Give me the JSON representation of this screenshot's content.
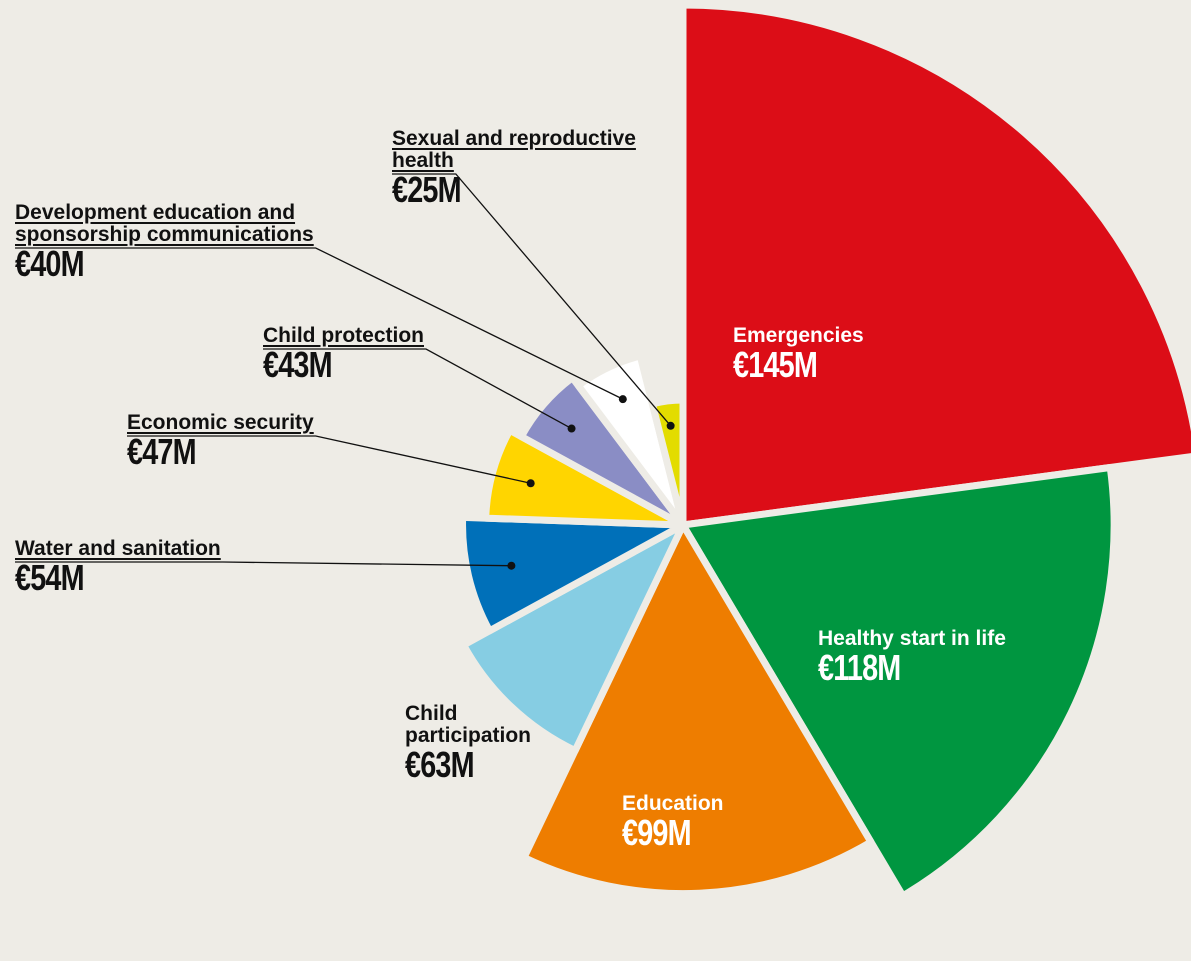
{
  "chart_data": {
    "type": "pie",
    "categories": [
      "Emergencies",
      "Healthy start in life",
      "Education",
      "Child participation",
      "Water and sanitation",
      "Economic security",
      "Child protection",
      "Development education and sponsorship communications",
      "Sexual and reproductive health"
    ],
    "values": [
      145,
      118,
      99,
      63,
      54,
      47,
      43,
      40,
      25
    ],
    "value_labels": [
      "€145M",
      "€118M",
      "€99M",
      "€63M",
      "€54M",
      "€47M",
      "€43M",
      "€40M",
      "€25M"
    ],
    "colors": [
      "#dc0d17",
      "#009640",
      "#ee7d00",
      "#86cde3",
      "#0070b9",
      "#ffd500",
      "#8a8dc5",
      "#ffffff",
      "#e3dc00"
    ]
  }
}
